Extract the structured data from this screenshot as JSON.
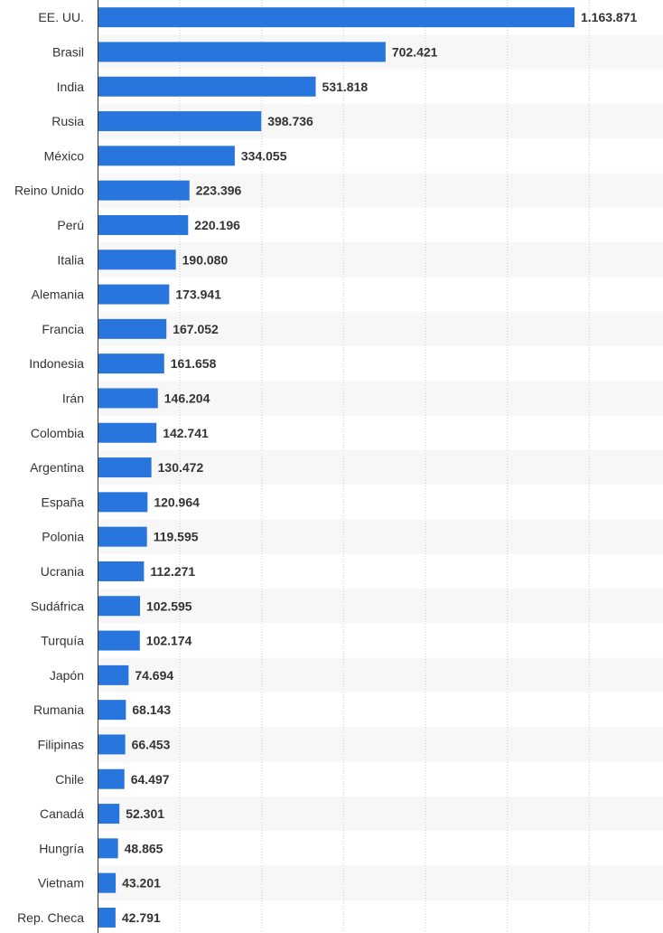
{
  "chart_data": {
    "type": "bar",
    "orientation": "horizontal",
    "categories": [
      "EE. UU.",
      "Brasil",
      "India",
      "Rusia",
      "México",
      "Reino Unido",
      "Perú",
      "Italia",
      "Alemania",
      "Francia",
      "Indonesia",
      "Irán",
      "Colombia",
      "Argentina",
      "España",
      "Polonia",
      "Ucrania",
      "Sudáfrica",
      "Turquía",
      "Japón",
      "Rumania",
      "Filipinas",
      "Chile",
      "Canadá",
      "Hungría",
      "Vietnam",
      "Rep. Checa"
    ],
    "values": [
      1163871,
      702421,
      531818,
      398736,
      334055,
      223396,
      220196,
      190080,
      173941,
      167052,
      161658,
      146204,
      142741,
      130472,
      120964,
      119595,
      112271,
      102595,
      102174,
      74694,
      68143,
      66453,
      64497,
      52301,
      48865,
      43201,
      42791
    ],
    "value_labels": [
      "1.163.871",
      "702.421",
      "531.818",
      "398.736",
      "334.055",
      "223.396",
      "220.196",
      "190.080",
      "173.941",
      "167.052",
      "161.658",
      "146.204",
      "142.741",
      "130.472",
      "120.964",
      "119.595",
      "112.271",
      "102.595",
      "102.174",
      "74.694",
      "68.143",
      "66.453",
      "64.497",
      "52.301",
      "48.865",
      "43.201",
      "42.791"
    ],
    "title": "",
    "xlabel": "",
    "ylabel": "",
    "xlim": [
      0,
      1400000
    ],
    "grid": "vertical dotted",
    "legend": "none",
    "bar_color": "#2876dd",
    "alt_row_color": "#f7f7f7"
  }
}
